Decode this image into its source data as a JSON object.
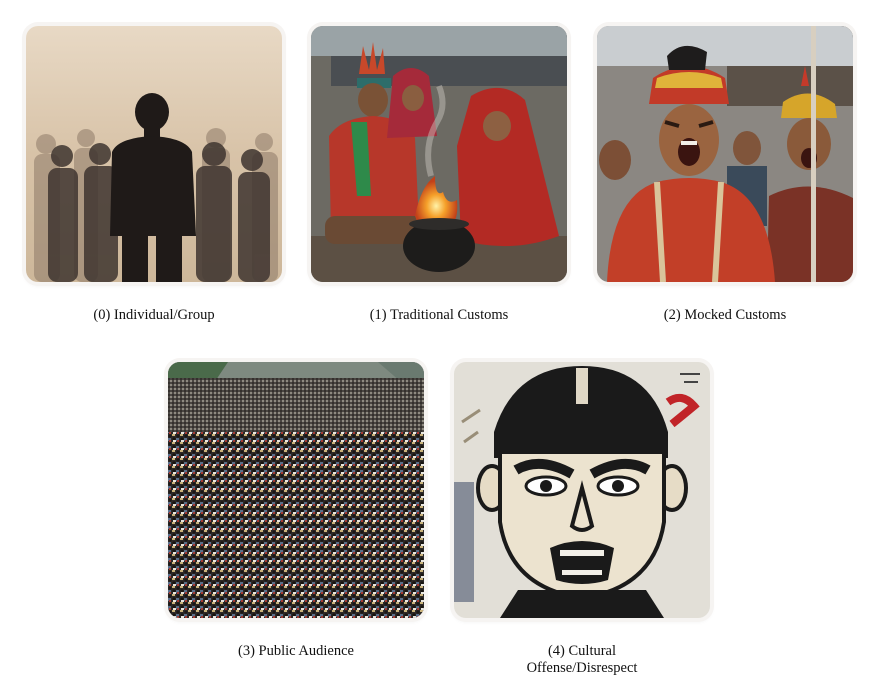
{
  "panels": [
    {
      "index": 0,
      "image_icon": "silhouette-crowd-image",
      "caption": "(0) Individual/Group"
    },
    {
      "index": 1,
      "image_icon": "fire-ritual-image",
      "caption": "(1) Traditional Customs"
    },
    {
      "index": 2,
      "image_icon": "shouting-people-image",
      "caption": "(2) Mocked Customs"
    },
    {
      "index": 3,
      "image_icon": "massive-crowd-image",
      "caption": "(3) Public Audience"
    },
    {
      "index": 4,
      "image_icon": "graffiti-angry-face-image",
      "caption_line1": "(4) Cultural",
      "caption_line2": "Offense/Disrespect"
    }
  ],
  "colors": {
    "sepia_bg": "#d9c6ad",
    "ritual_red": "#a52a23",
    "fire_orange": "#f08a24",
    "crowd_dark": "#3a3432",
    "graffiti_black": "#1a1a1a",
    "wall_white": "#e9e6df"
  }
}
